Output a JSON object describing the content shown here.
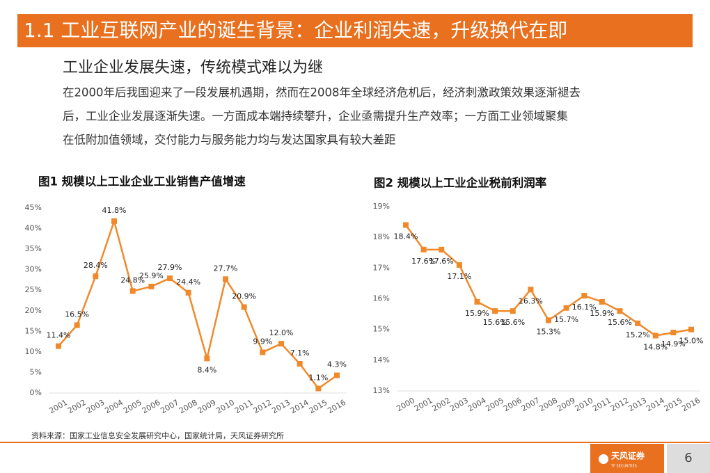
{
  "header": {
    "title": "1.1 工业互联网产业的诞生背景：企业利润失速，升级换代在即"
  },
  "subtitle": "工业企业发展失速，传统模式难以为继",
  "body": [
    "在2000年后我国迎来了一段发展机遇期，然而在2008年全球经济危机后，经济刺激政策效果逐渐褪去",
    "后，工业企业发展逐渐失速。一方面成本端持续攀升，企业亟需提升生产效率；一方面工业领域聚集",
    "在低附加值领域，交付能力与服务能力均与发达国家具有较大差距"
  ],
  "chart_data": [
    {
      "type": "line",
      "title": "图1 规模以上工业企业工业销售产值增速",
      "color": "#f0892a",
      "categories": [
        "2001",
        "2002",
        "2003",
        "2004",
        "2005",
        "2006",
        "2007",
        "2008",
        "2009",
        "2010",
        "2011",
        "2012",
        "2013",
        "2014",
        "2015",
        "2016"
      ],
      "values": [
        11.4,
        16.5,
        28.4,
        41.8,
        24.8,
        25.9,
        27.9,
        24.4,
        8.4,
        27.7,
        20.9,
        9.9,
        12.0,
        7.1,
        1.1,
        4.3
      ],
      "value_labels": [
        "11.4%",
        "16.5%",
        "28.4%",
        "41.8%",
        "24.8%",
        "25.9%",
        "27.9%",
        "24.4%",
        "8.4%",
        "27.7%",
        "20.9%",
        "9.9%",
        "12.0%",
        "7.1%",
        "1.1%",
        "4.3%"
      ],
      "ylim": [
        0,
        45
      ],
      "yticks": [
        {
          "value": 0,
          "label": "0%"
        },
        {
          "value": 5,
          "label": "5%"
        },
        {
          "value": 10,
          "label": "10%"
        },
        {
          "value": 15,
          "label": "15%"
        },
        {
          "value": 20,
          "label": "20%"
        },
        {
          "value": 25,
          "label": "25%"
        },
        {
          "value": 30,
          "label": "30%"
        },
        {
          "value": 35,
          "label": "35%"
        },
        {
          "value": 40,
          "label": "40%"
        },
        {
          "value": 45,
          "label": "45%"
        }
      ]
    },
    {
      "type": "line",
      "title": "图2 规模以上工业企业税前利润率",
      "color": "#f0892a",
      "categories": [
        "2000",
        "2001",
        "2002",
        "2003",
        "2004",
        "2005",
        "2006",
        "2007",
        "2008",
        "2009",
        "2010",
        "2011",
        "2012",
        "2013",
        "2014",
        "2015",
        "2016"
      ],
      "values": [
        18.4,
        17.6,
        17.6,
        17.1,
        15.9,
        15.6,
        15.6,
        16.3,
        15.3,
        15.7,
        16.1,
        15.9,
        15.6,
        15.2,
        14.8,
        14.9,
        15.0
      ],
      "value_labels": [
        "18.4%",
        "17.6%",
        "17.6%",
        "17.1%",
        "15.9%",
        "15.6%",
        "15.6%",
        "16.3%",
        "15.3%",
        "15.7%",
        "16.1%",
        "15.9%",
        "15.6%",
        "15.2%",
        "14.8%",
        "14.9%",
        "15.0%"
      ],
      "ylim": [
        13,
        19
      ],
      "yticks": [
        {
          "value": 13,
          "label": "13%"
        },
        {
          "value": 14,
          "label": "14%"
        },
        {
          "value": 15,
          "label": "15%"
        },
        {
          "value": 16,
          "label": "16%"
        },
        {
          "value": 17,
          "label": "17%"
        },
        {
          "value": 18,
          "label": "18%"
        },
        {
          "value": 19,
          "label": "19%"
        }
      ]
    }
  ],
  "source": "资料来源：国家工业信息安全发展研究中心，国家统计局，天风证券研究所",
  "footer": {
    "brand": "天风证券",
    "brand_en": "TF SECURITIES",
    "page": "6"
  }
}
